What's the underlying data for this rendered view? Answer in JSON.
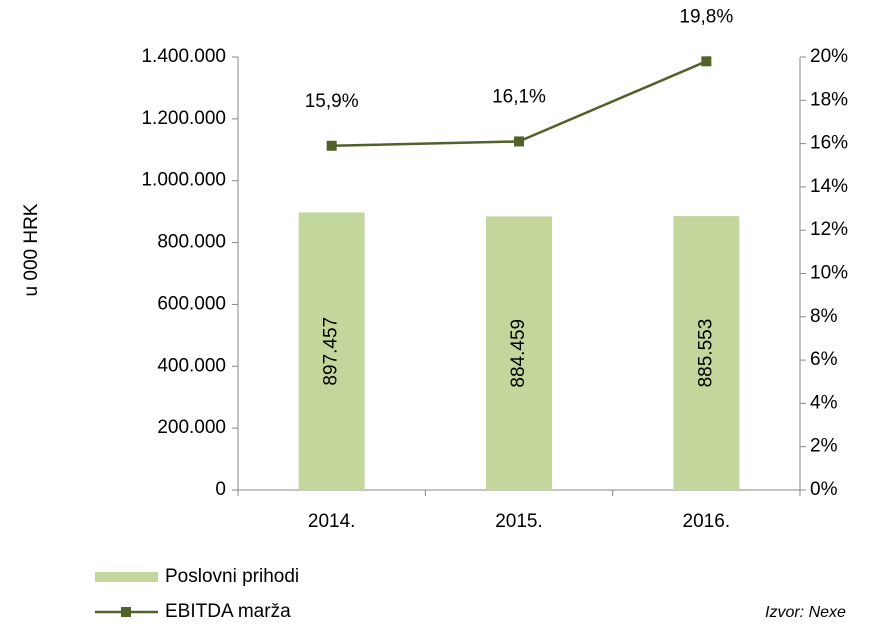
{
  "chart_data": {
    "type": "bar",
    "categories": [
      "2014.",
      "2015.",
      "2016."
    ],
    "series": [
      {
        "name": "Poslovni prihodi",
        "type": "bar",
        "color": "#c3d69b",
        "values": [
          897457,
          884459,
          885553
        ],
        "value_labels": [
          "897.457",
          "884.459",
          "885.553"
        ]
      },
      {
        "name": "EBITDA marža",
        "type": "line",
        "axis": "y2",
        "color": "#4f6228",
        "values": [
          15.9,
          16.1,
          19.8
        ],
        "value_labels": [
          "15,9%",
          "16,1%",
          "19,8%"
        ]
      }
    ],
    "ylabel": "u 000 HRK",
    "ylim": [
      0,
      1400000
    ],
    "yticks": [
      0,
      {
        "value": 200000,
        "label": "200.000"
      },
      {
        "value": 400000,
        "label": "400.000"
      },
      {
        "value": 600000,
        "label": "600.000"
      },
      {
        "value": 800000,
        "label": "800.000"
      },
      {
        "value": 1000000,
        "label": "1.000.000"
      },
      {
        "value": 1200000,
        "label": "1.200.000"
      },
      {
        "value": 1400000,
        "label": "1.400.000"
      }
    ],
    "y2lim": [
      0,
      20
    ],
    "y2ticks": [
      {
        "value": 0,
        "label": "0%"
      },
      {
        "value": 2,
        "label": "2%"
      },
      {
        "value": 4,
        "label": "4%"
      },
      {
        "value": 6,
        "label": "6%"
      },
      {
        "value": 8,
        "label": "8%"
      },
      {
        "value": 10,
        "label": "10%"
      },
      {
        "value": 12,
        "label": "12%"
      },
      {
        "value": 14,
        "label": "14%"
      },
      {
        "value": 16,
        "label": "16%"
      },
      {
        "value": 18,
        "label": "18%"
      },
      {
        "value": 20,
        "label": "20%"
      }
    ],
    "legend": "bottom-left",
    "source": "Izvor: Nexe"
  }
}
